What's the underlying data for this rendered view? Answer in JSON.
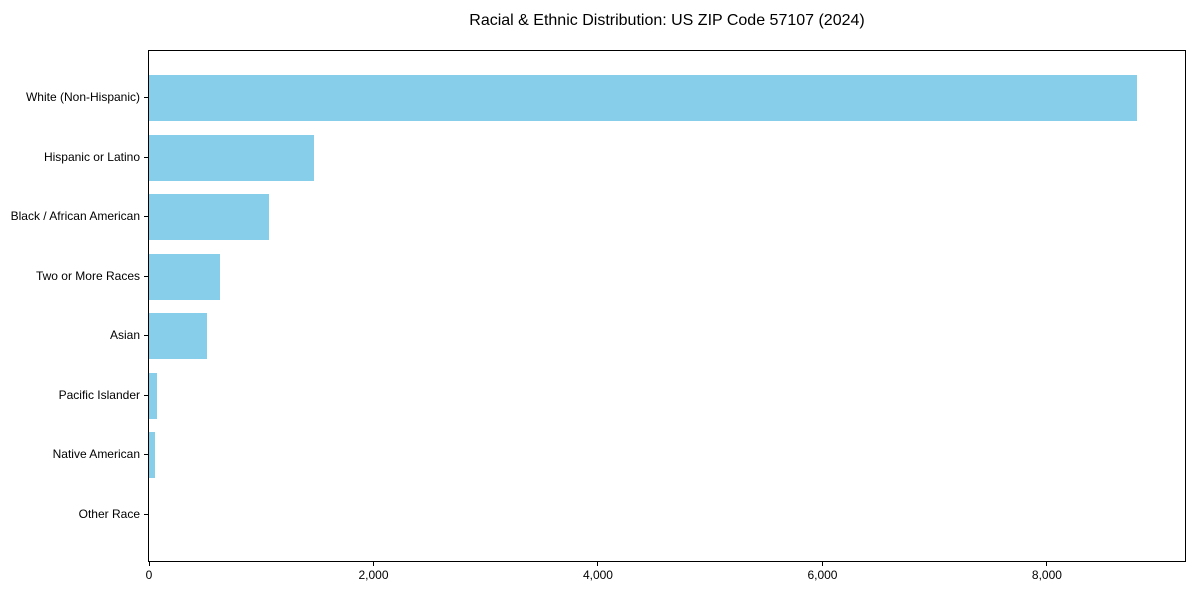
{
  "page": {
    "background_color": "#ffffff"
  },
  "chart_data": {
    "type": "bar",
    "orientation": "horizontal",
    "title": "Racial & Ethnic Distribution: US ZIP Code 57107 (2024)",
    "categories": [
      "White (Non-Hispanic)",
      "Hispanic or Latino",
      "Black / African American",
      "Two or More Races",
      "Asian",
      "Pacific Islander",
      "Native American",
      "Other Race"
    ],
    "values": [
      8800,
      1470,
      1070,
      630,
      515,
      75,
      55,
      0
    ],
    "xlabel": "",
    "ylabel": "",
    "xlim": [
      0,
      9230
    ],
    "xticks": [
      0,
      2000,
      4000,
      6000,
      8000
    ],
    "xtick_labels": [
      "0",
      "2,000",
      "4,000",
      "6,000",
      "8,000"
    ],
    "bar_color": "#87CEEB",
    "axis_color": "#000000",
    "text_color": "#000000",
    "grid": false,
    "legend": "none"
  }
}
